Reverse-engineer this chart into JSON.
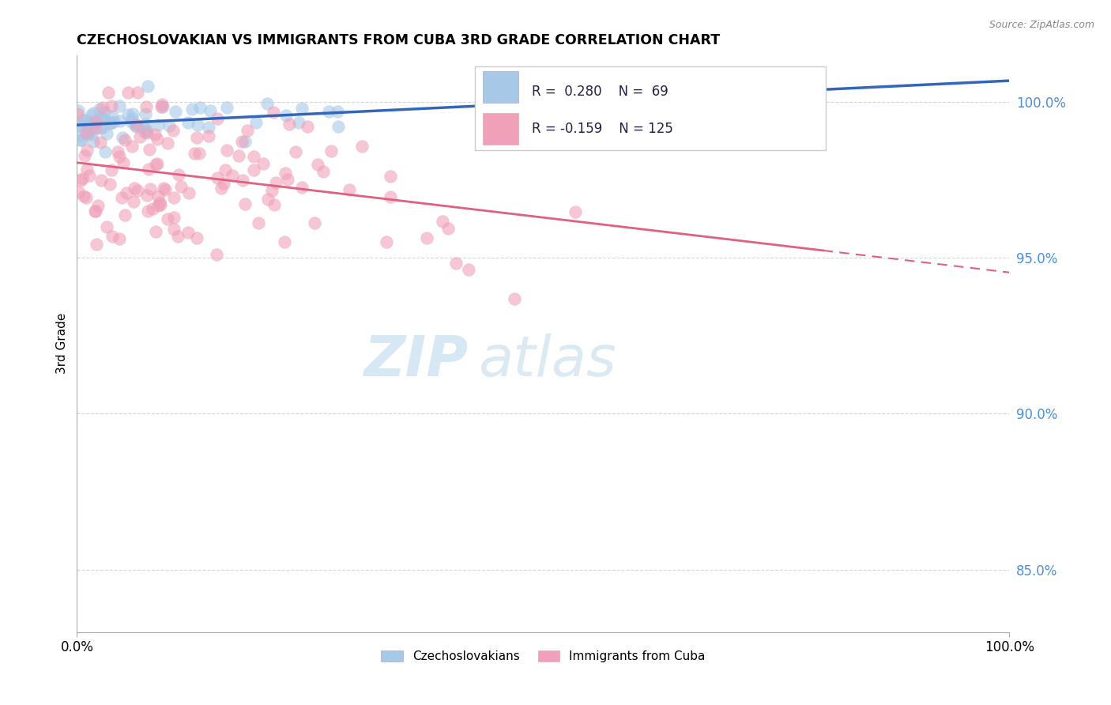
{
  "title": "CZECHOSLOVAKIAN VS IMMIGRANTS FROM CUBA 3RD GRADE CORRELATION CHART",
  "source_text": "Source: ZipAtlas.com",
  "ylabel": "3rd Grade",
  "blue_R": 0.28,
  "blue_N": 69,
  "pink_R": -0.159,
  "pink_N": 125,
  "blue_color": "#a8c8e8",
  "blue_line_color": "#3366bb",
  "pink_color": "#f0a0b8",
  "pink_line_color": "#e06080",
  "legend_label_blue": "Czechoslovakians",
  "legend_label_pink": "Immigrants from Cuba",
  "watermark_ZIP": "ZIP",
  "watermark_atlas": "atlas",
  "xmin": 0.0,
  "xmax": 100.0,
  "ymin": 83.0,
  "ymax": 101.5,
  "ytick_values": [
    85.0,
    90.0,
    95.0,
    100.0
  ],
  "xtick_values": [
    0.0,
    100.0
  ],
  "xtick_labels": [
    "0.0%",
    "100.0%"
  ]
}
